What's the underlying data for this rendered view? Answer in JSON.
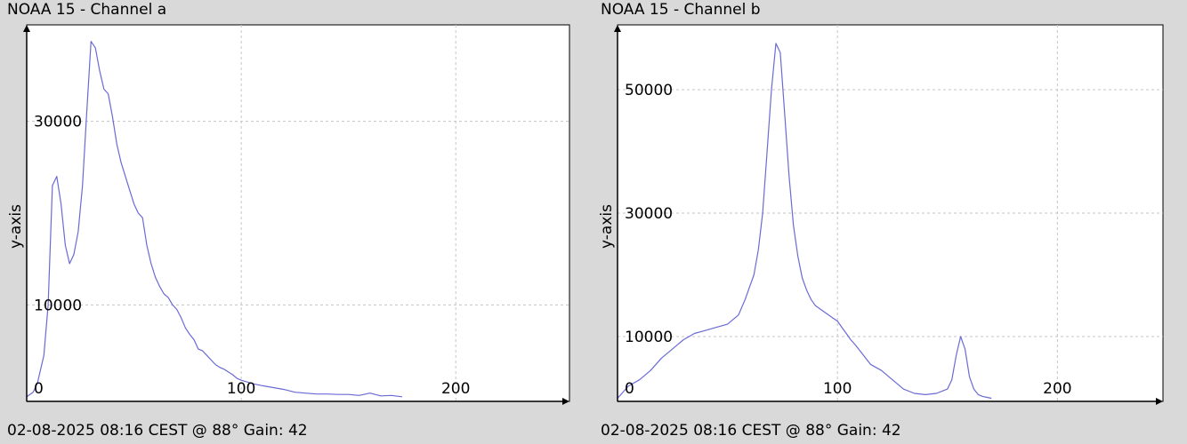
{
  "colors": {
    "background": "#d9d9d9",
    "plot_bg": "#ffffff",
    "line": "#6a6ad6",
    "grid": "#c4c4c4",
    "axis": "#000000"
  },
  "chart_data": [
    {
      "type": "line",
      "title": "NOAA 15 - Channel a",
      "footer": "02-08-2025 08:16 CEST @ 88° Gain: 42",
      "xlabel": "",
      "ylabel": "y-axis",
      "xlim": [
        0,
        253
      ],
      "ylim": [
        -500,
        40500
      ],
      "xticks": [
        0,
        100,
        200
      ],
      "yticks": [
        10000,
        30000
      ],
      "grid": true,
      "series": [
        {
          "x": [
            0,
            3,
            5,
            8,
            10,
            12,
            14,
            16,
            18,
            20,
            22,
            24,
            26,
            28,
            30,
            32,
            34,
            36,
            38,
            40,
            42,
            44,
            46,
            48,
            50,
            52,
            54,
            56,
            58,
            60,
            62,
            64,
            66,
            68,
            70,
            72,
            74,
            76,
            78,
            80,
            82,
            84,
            86,
            88,
            90,
            92,
            94,
            96,
            98,
            100,
            103,
            106,
            110,
            115,
            120,
            125,
            130,
            135,
            140,
            145,
            150,
            155,
            160,
            165,
            170,
            175
          ],
          "y": [
            0,
            500,
            1500,
            4500,
            10000,
            23000,
            24000,
            21000,
            16500,
            14500,
            15500,
            18000,
            23000,
            31000,
            38700,
            38000,
            35500,
            33500,
            33000,
            30500,
            27500,
            25500,
            24000,
            22500,
            21000,
            20000,
            19500,
            16500,
            14500,
            13000,
            12000,
            11200,
            10800,
            10000,
            9500,
            8600,
            7500,
            6800,
            6200,
            5200,
            5000,
            4500,
            4000,
            3500,
            3200,
            3000,
            2700,
            2400,
            2000,
            1800,
            1600,
            1400,
            1200,
            1000,
            800,
            500,
            400,
            300,
            300,
            250,
            250,
            150,
            400,
            100,
            150,
            0
          ]
        }
      ]
    },
    {
      "type": "line",
      "title": "NOAA 15 - Channel b",
      "footer": "02-08-2025 08:16 CEST @ 88° Gain: 42",
      "xlabel": "",
      "ylabel": "y-axis",
      "xlim": [
        0,
        248
      ],
      "ylim": [
        -500,
        60500
      ],
      "xticks": [
        0,
        100,
        200
      ],
      "yticks": [
        10000,
        30000,
        50000
      ],
      "grid": true,
      "series": [
        {
          "x": [
            0,
            5,
            10,
            15,
            20,
            25,
            30,
            35,
            40,
            45,
            50,
            55,
            58,
            60,
            62,
            64,
            66,
            68,
            70,
            72,
            74,
            76,
            78,
            80,
            82,
            84,
            86,
            88,
            90,
            92,
            94,
            96,
            98,
            100,
            102,
            104,
            106,
            108,
            110,
            115,
            120,
            125,
            130,
            135,
            140,
            145,
            150,
            152,
            154,
            156,
            158,
            160,
            162,
            164,
            166,
            168,
            170
          ],
          "y": [
            0,
            2000,
            3000,
            4500,
            6500,
            8000,
            9500,
            10500,
            11000,
            11500,
            12000,
            13500,
            16000,
            18000,
            20000,
            24000,
            30000,
            40000,
            50000,
            57500,
            56000,
            46000,
            36000,
            28000,
            23000,
            19500,
            17500,
            16000,
            15000,
            14500,
            14000,
            13500,
            13000,
            12500,
            11500,
            10500,
            9500,
            8700,
            7800,
            5500,
            4500,
            3000,
            1500,
            800,
            600,
            800,
            1500,
            3000,
            7000,
            10000,
            8000,
            3500,
            1500,
            600,
            300,
            150,
            0
          ]
        }
      ]
    }
  ]
}
